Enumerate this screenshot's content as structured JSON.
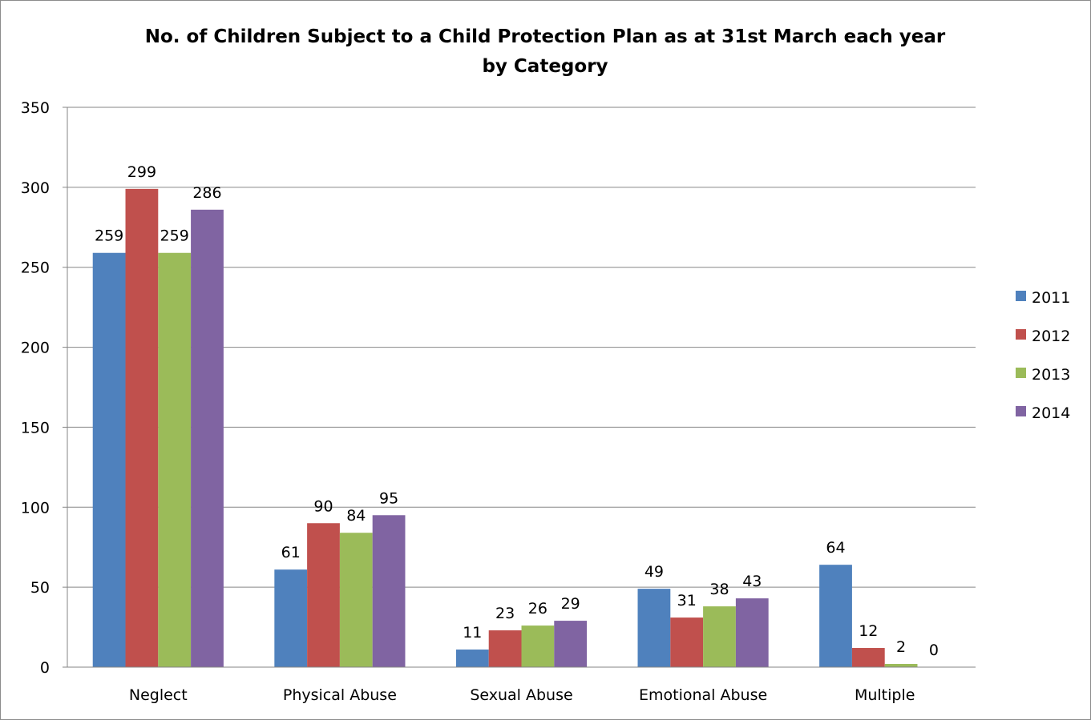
{
  "chart_data": {
    "type": "bar",
    "title_line1": "No. of Children Subject to a Child Protection Plan as at 31st March each year",
    "title_line2": "by Category",
    "xlabel": "",
    "ylabel": "",
    "categories": [
      "Neglect",
      "Physical Abuse",
      "Sexual Abuse",
      "Emotional Abuse",
      "Multiple"
    ],
    "ylim": [
      0,
      350
    ],
    "yticks": [
      0,
      50,
      100,
      150,
      200,
      250,
      300,
      350
    ],
    "grid": true,
    "legend_position": "right",
    "series": [
      {
        "name": "2011",
        "color": "#4f81bd",
        "values": [
          259,
          61,
          11,
          49,
          64
        ]
      },
      {
        "name": "2012",
        "color": "#c0504d",
        "values": [
          299,
          90,
          23,
          31,
          12
        ]
      },
      {
        "name": "2013",
        "color": "#9bbb59",
        "values": [
          259,
          84,
          26,
          38,
          2
        ]
      },
      {
        "name": "2014",
        "color": "#8064a2",
        "values": [
          286,
          95,
          29,
          43,
          0
        ]
      }
    ]
  }
}
